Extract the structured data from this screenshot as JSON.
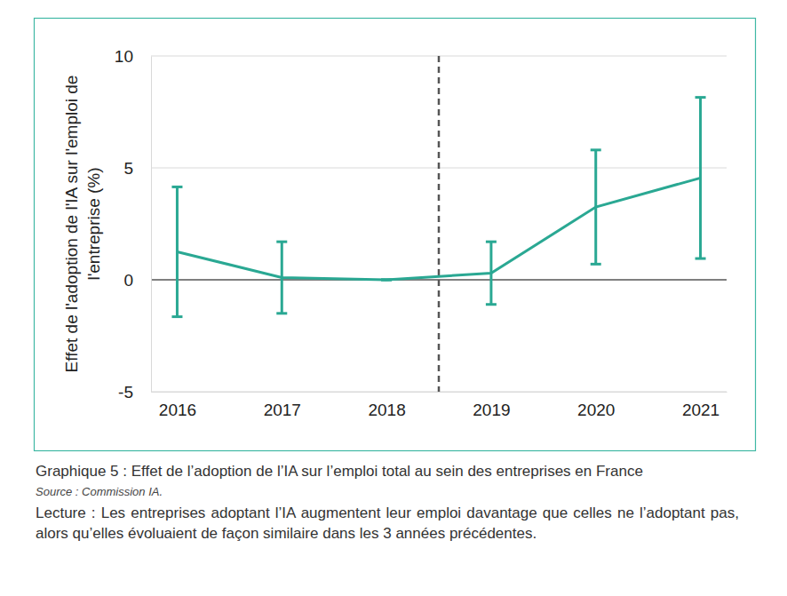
{
  "chart_data": {
    "type": "line",
    "caption": "Graphique 5 : Effet de l’adoption de l’IA sur l’emploi total au sein des entreprises en France",
    "source": "Source : Commission IA.",
    "note": "Lecture : Les entreprises adoptant l’IA augmentent leur emploi davantage que celles ne l’adoptant pas, alors qu’elles évoluaient de façon similaire dans les 3 années précédentes.",
    "ylabel": "Effet de l'adoption de l'IA sur l'emploi de l'entreprise (%)",
    "x": [
      2016,
      2017,
      2018,
      2019,
      2020,
      2021
    ],
    "series": [
      {
        "color": "#2aa893",
        "values": [
          1.25,
          0.1,
          0,
          0.3,
          3.25,
          4.55
        ],
        "errors": [
          2.9,
          1.6,
          0,
          1.4,
          2.55,
          3.6
        ]
      }
    ],
    "xlim": [
      2015.75,
      2021.25
    ],
    "xticks": [
      2016,
      2017,
      2018,
      2019,
      2020,
      2021
    ],
    "ylim": [
      -5,
      10
    ],
    "yticks": [
      -5,
      0,
      5,
      10
    ],
    "reference_lines": [
      {
        "x": 2018.5
      }
    ],
    "grid": true
  }
}
